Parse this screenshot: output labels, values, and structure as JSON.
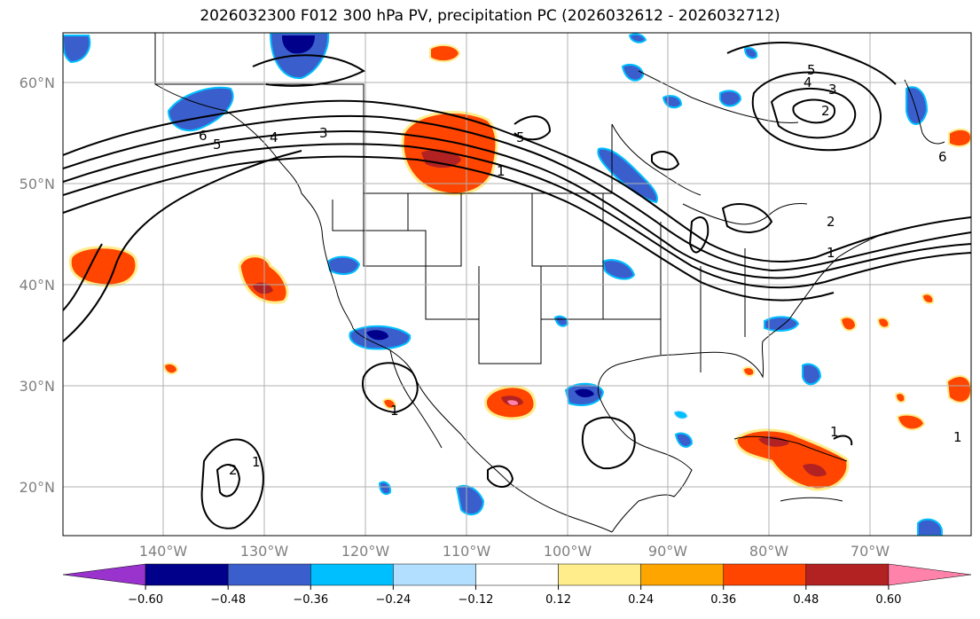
{
  "title": "2026032300 F012 300 hPa PV, precipitation PC (2026032612 - 2026032712)",
  "map": {
    "lat_labels": [
      "60°N",
      "50°N",
      "40°N",
      "30°N",
      "20°N"
    ],
    "lon_labels": [
      "140°W",
      "130°W",
      "120°W",
      "110°W",
      "100°W",
      "90°W",
      "80°W",
      "70°W"
    ],
    "contour_labels": [
      "6",
      "5",
      "4",
      "3",
      "5",
      "1",
      "5",
      "4",
      "3",
      "2",
      "6",
      "2",
      "1",
      "1",
      "2",
      "1",
      "1",
      "1"
    ]
  },
  "colorbar": {
    "ticks": [
      "−0.60",
      "−0.48",
      "−0.36",
      "−0.24",
      "−0.12",
      "0.12",
      "0.24",
      "0.36",
      "0.48",
      "0.60"
    ],
    "colors": [
      "#9a32cd",
      "#00008b",
      "#3a5fcd",
      "#00bfff",
      "#b2dfff",
      "#ffffff",
      "#ffec8b",
      "#ffa500",
      "#ff4500",
      "#b22222",
      "#ff82ab"
    ]
  }
}
